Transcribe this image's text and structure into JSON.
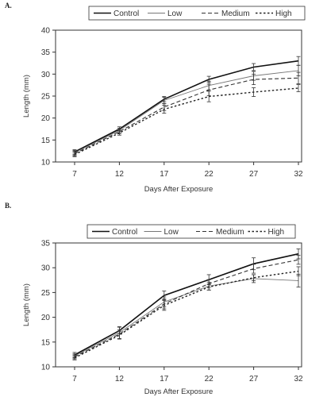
{
  "chart_data": [
    {
      "panel": "A.",
      "type": "line",
      "xlabel": "Days After Exposure",
      "ylabel": "Length (mm)",
      "x": [
        7,
        12,
        17,
        22,
        27,
        32
      ],
      "ylim": [
        10,
        40
      ],
      "yticks": [
        10,
        15,
        20,
        25,
        30,
        35,
        40
      ],
      "legend": "top",
      "grid": false,
      "series": [
        {
          "name": "Control",
          "style": "solid",
          "values": [
            12.3,
            17.5,
            24.3,
            28.8,
            31.6,
            33.0
          ],
          "err": [
            0.5,
            0.5,
            0.6,
            0.7,
            0.8,
            1.0
          ]
        },
        {
          "name": "Low",
          "style": "thin",
          "values": [
            12.1,
            17.2,
            24.0,
            27.4,
            29.6,
            30.8
          ],
          "err": [
            0.5,
            0.5,
            0.7,
            1.0,
            1.0,
            1.2
          ]
        },
        {
          "name": "Medium",
          "style": "dash",
          "values": [
            11.9,
            16.9,
            22.5,
            26.4,
            28.8,
            29.1
          ],
          "err": [
            0.5,
            0.5,
            0.8,
            1.3,
            1.2,
            1.3
          ]
        },
        {
          "name": "High",
          "style": "dot",
          "values": [
            11.7,
            16.6,
            22.0,
            24.9,
            25.9,
            26.8
          ],
          "err": [
            0.5,
            0.5,
            0.9,
            1.2,
            1.0,
            0.8
          ]
        }
      ]
    },
    {
      "panel": "B.",
      "type": "line",
      "xlabel": "Days After Exposure",
      "ylabel": "Length (mm)",
      "x": [
        7,
        12,
        17,
        22,
        27,
        32
      ],
      "ylim": [
        10,
        35
      ],
      "yticks": [
        10,
        15,
        20,
        25,
        30,
        35
      ],
      "legend": "top",
      "grid": false,
      "series": [
        {
          "name": "Control",
          "style": "solid",
          "values": [
            12.4,
            17.3,
            24.4,
            27.6,
            30.8,
            32.8
          ],
          "err": [
            0.5,
            0.7,
            0.9,
            1.0,
            1.2,
            1.0
          ]
        },
        {
          "name": "Low",
          "style": "thin",
          "values": [
            12.2,
            16.9,
            23.1,
            26.3,
            27.8,
            27.4
          ],
          "err": [
            0.4,
            1.2,
            1.0,
            0.8,
            0.8,
            1.3
          ]
        },
        {
          "name": "Medium",
          "style": "dash",
          "values": [
            12.0,
            16.6,
            22.7,
            26.8,
            29.8,
            31.6
          ],
          "err": [
            0.4,
            0.9,
            1.0,
            0.8,
            0.9,
            0.9
          ]
        },
        {
          "name": "High",
          "style": "dot",
          "values": [
            11.8,
            16.4,
            22.4,
            26.1,
            28.0,
            29.3
          ],
          "err": [
            0.4,
            0.8,
            1.0,
            0.6,
            0.6,
            0.9
          ]
        }
      ]
    }
  ]
}
